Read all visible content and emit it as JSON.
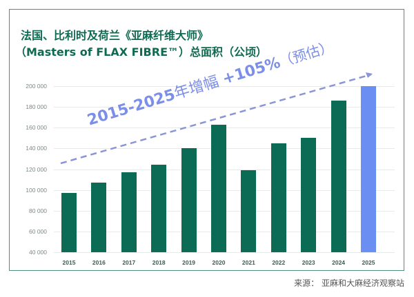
{
  "title": {
    "line1": "法国、比利时及荷兰《亚麻纤维大师》",
    "line2": "（Masters of FLAX FIBRE™）总面积（公顷）"
  },
  "annotation": {
    "years": "2015-2025",
    "label": "年增幅",
    "pct": "+105%",
    "note": "（预估）"
  },
  "source": "来源：  亚麻和大麻经济观察站",
  "colors": {
    "bar": "#0b6b55",
    "bar_estimate": "#6b8ef2",
    "annotation": "#7b8ee8",
    "title": "#0e6b52"
  },
  "chart_data": {
    "type": "bar",
    "title": "法国、比利时及荷兰《亚麻纤维大师》（Masters of FLAX FIBRE™）总面积（公顷）",
    "xlabel": "",
    "ylabel": "公顷",
    "categories": [
      "2015",
      "2016",
      "2017",
      "2018",
      "2019",
      "2020",
      "2021",
      "2022",
      "2023",
      "2024",
      "2025"
    ],
    "values": [
      97000,
      107000,
      117000,
      124000,
      140000,
      163000,
      119000,
      145000,
      150000,
      186000,
      200000
    ],
    "estimated": [
      false,
      false,
      false,
      false,
      false,
      false,
      false,
      false,
      false,
      false,
      true
    ],
    "ylim": [
      40000,
      200000
    ],
    "yticks": [
      "40 000",
      "60 000",
      "80 000",
      "100 000",
      "120 000",
      "140 000",
      "160 000",
      "180 000",
      "200 000"
    ],
    "grid": true,
    "annotations": [
      "2015-2025年增幅 +105%（预估）"
    ]
  }
}
